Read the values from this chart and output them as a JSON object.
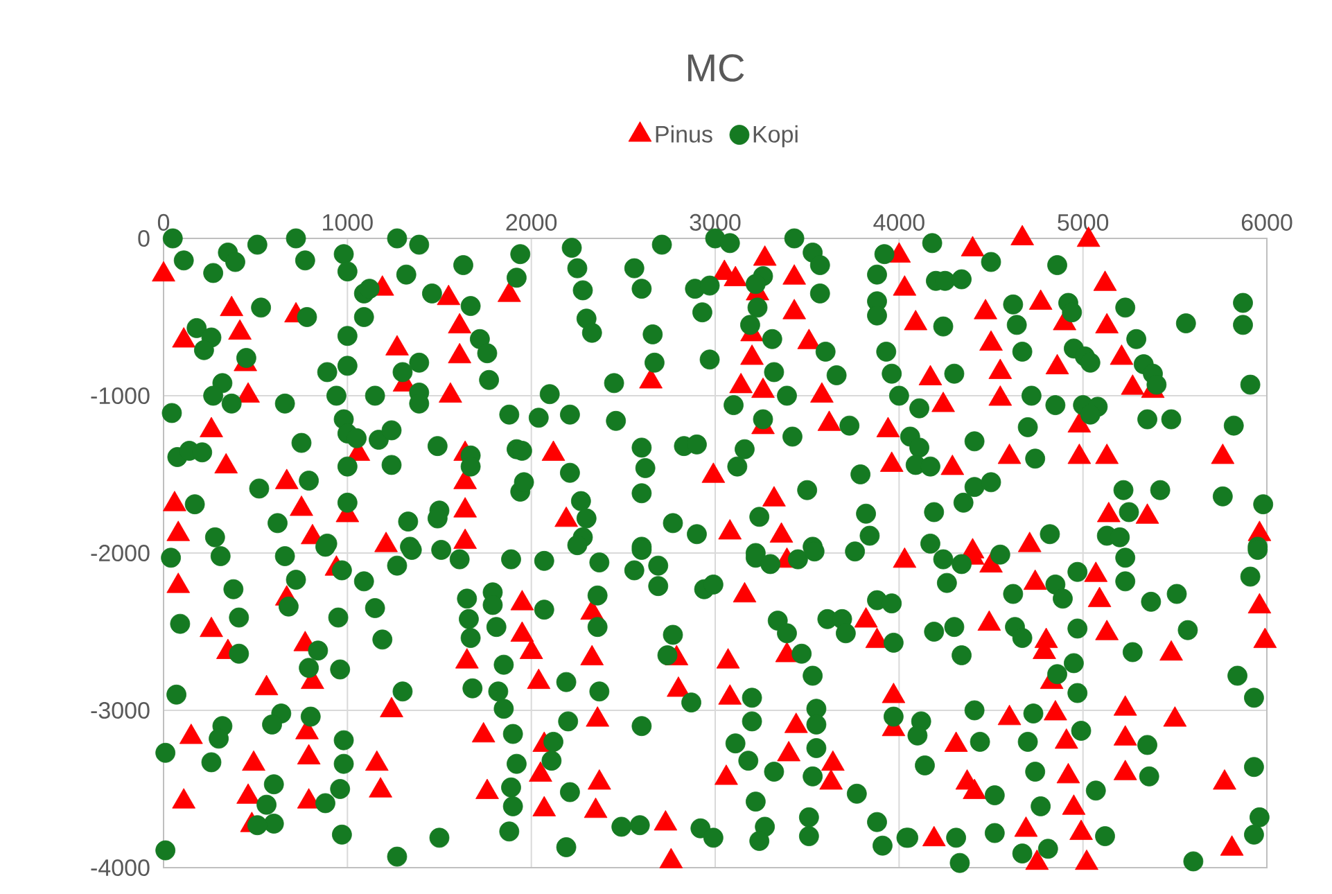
{
  "chart_data": {
    "type": "scatter",
    "title": "MC",
    "xlim": [
      0,
      6000
    ],
    "ylim": [
      -4000,
      0
    ],
    "xticks": [
      0,
      1000,
      2000,
      3000,
      4000,
      5000,
      6000
    ],
    "yticks": [
      0,
      -1000,
      -2000,
      -3000,
      -4000
    ],
    "grid": true,
    "legend": "top",
    "series": [
      {
        "name": "Pinus",
        "color": "#ff0000",
        "marker": "triangle",
        "x": [
          0,
          370,
          110,
          415,
          445,
          720,
          460,
          260,
          340,
          670,
          750,
          60,
          80,
          810,
          1000,
          1190,
          1270,
          1310,
          1060,
          1550,
          1610,
          1610,
          1560,
          1880,
          1640,
          1640,
          1640,
          1210,
          1640,
          2120,
          2190,
          2650,
          3050,
          3110,
          3270,
          3230,
          3430,
          3430,
          3200,
          3510,
          3200,
          3140,
          3260,
          3260,
          3580,
          3620,
          2990,
          3320,
          3080,
          3360,
          4000,
          4030,
          3940,
          3960,
          4400,
          4670,
          5030,
          5120,
          4770,
          4470,
          4900,
          4090,
          5130,
          4500,
          5210,
          4550,
          4860,
          4170,
          5270,
          5380,
          4550,
          4240,
          4980,
          4600,
          4980,
          5130,
          4290,
          5760,
          5140,
          5350,
          5960,
          4400,
          4710,
          80,
          260,
          350,
          560,
          770,
          810,
          150,
          490,
          460,
          480,
          780,
          790,
          790,
          670,
          1240,
          1160,
          1180,
          1650,
          1740,
          1760,
          1950,
          1950,
          110,
          940,
          2330,
          2000,
          2330,
          2040,
          2790,
          2800,
          2360,
          2070,
          2050,
          2070,
          2370,
          2350,
          2730,
          2760,
          3160,
          3070,
          3080,
          3060,
          3390,
          3390,
          3440,
          3400,
          3640,
          3630,
          3820,
          3880,
          4030,
          3970,
          3970,
          4400,
          4500,
          4740,
          5070,
          5090,
          4490,
          4800,
          4790,
          5130,
          5480,
          4830,
          5960,
          5990,
          4600,
          4850,
          5230,
          5500,
          4310,
          4910,
          5230,
          4370,
          4410,
          4920,
          5230,
          5770,
          4950,
          4690,
          4990,
          4190,
          4750,
          5020,
          5810
        ],
        "values": [
          -230,
          -450,
          -650,
          -600,
          -800,
          -490,
          -1000,
          -1220,
          -1450,
          -1550,
          -1720,
          -1690,
          -1880,
          -1900,
          -1760,
          -320,
          -700,
          -930,
          -1370,
          -380,
          -560,
          -750,
          -1000,
          -360,
          -1370,
          -1550,
          -1730,
          -1950,
          -1930,
          -1370,
          -1790,
          -910,
          -220,
          -260,
          -130,
          -350,
          -250,
          -470,
          -610,
          -660,
          -760,
          -940,
          -970,
          -1200,
          -1000,
          -1180,
          -1510,
          -1660,
          -1870,
          -1890,
          -110,
          -320,
          -1220,
          -1440,
          -70,
          0,
          -10,
          -290,
          -410,
          -470,
          -540,
          -540,
          -560,
          -670,
          -760,
          -850,
          -820,
          -890,
          -950,
          -970,
          -1020,
          -1060,
          -1190,
          -1390,
          -1390,
          -1390,
          -1460,
          -1390,
          -1760,
          -1770,
          -1880,
          -1990,
          -1950,
          -2210,
          -2490,
          -2630,
          -2860,
          -2580,
          -2820,
          -3170,
          -3340,
          -3550,
          -3730,
          -3140,
          -3300,
          -3580,
          -2290,
          -3000,
          -3340,
          -3510,
          -2690,
          -3160,
          -3520,
          -2320,
          -2520,
          -3580,
          -2100,
          -2380,
          -2630,
          -2670,
          -2820,
          -2670,
          -2870,
          -3060,
          -3220,
          -3410,
          -3630,
          -3460,
          -3640,
          -3720,
          -3960,
          -2270,
          -2690,
          -2920,
          -3430,
          -2050,
          -2650,
          -3100,
          -3280,
          -3340,
          -3460,
          -2430,
          -2560,
          -2050,
          -2910,
          -3120,
          -2030,
          -2080,
          -2190,
          -2140,
          -2300,
          -2450,
          -2560,
          -2630,
          -2510,
          -2640,
          -2820,
          -2340,
          -2560,
          -3050,
          -3020,
          -2990,
          -3060,
          -3220,
          -3200,
          -3180,
          -3460,
          -3520,
          -3420,
          -3400,
          -3460,
          -3620,
          -3760,
          -3780,
          -3820,
          -3970,
          -3970,
          -3880
        ]
      },
      {
        "name": "Kopi",
        "color": "#157a22",
        "marker": "circle",
        "x": [
          50,
          110,
          270,
          350,
          390,
          510,
          720,
          770,
          980,
          1000,
          1270,
          1390,
          1630,
          1090,
          1120,
          1320,
          1460,
          1670,
          530,
          780,
          180,
          260,
          220,
          450,
          1090,
          1000,
          1000,
          890,
          1390,
          1300,
          1720,
          1760,
          1770,
          320,
          270,
          370,
          660,
          940,
          1150,
          1390,
          1390,
          45,
          980,
          1000,
          1050,
          1170,
          1240,
          750,
          75,
          140,
          210,
          1490,
          1670,
          1670,
          1000,
          1240,
          520,
          790,
          170,
          1000,
          620,
          280,
          890,
          1340,
          1500,
          1490,
          1330,
          1880,
          1920,
          1940,
          1920,
          1940,
          2220,
          2250,
          2280,
          2300,
          2330,
          2560,
          2600,
          2710,
          2660,
          2670,
          2450,
          3000,
          3080,
          2890,
          2970,
          2930,
          2970,
          3430,
          3530,
          3570,
          3570,
          3260,
          3220,
          3230,
          3190,
          3310,
          3600,
          3320,
          3660,
          3390,
          3100,
          3260,
          3420,
          3730,
          3920,
          3880,
          3880,
          3880,
          3930,
          3960,
          4000,
          2100,
          2040,
          2210,
          2460,
          2600,
          2620,
          2830,
          2900,
          3160,
          3120,
          2210,
          1950,
          1960,
          2270,
          2300,
          2280,
          2250,
          2600,
          2600,
          2770,
          2900,
          3240,
          3500,
          3790,
          3820,
          3840,
          3530,
          3220,
          4180,
          4500,
          4200,
          4250,
          4340,
          4860,
          4620,
          4640,
          4920,
          4940,
          4240,
          4670,
          4950,
          5010,
          5040,
          5230,
          5290,
          5330,
          5380,
          5400,
          5560,
          5870,
          5870,
          4300,
          4720,
          4850,
          5000,
          5080,
          5040,
          4110,
          4700,
          5350,
          5480,
          5820,
          4410,
          4060,
          4110,
          4090,
          4170,
          4740,
          4410,
          4500,
          4350,
          4190,
          5220,
          5420,
          5760,
          5980,
          5250,
          5130,
          5200,
          4820,
          4170,
          5910,
          5950,
          40,
          310,
          660,
          880,
          380,
          410,
          90,
          410,
          720,
          680,
          970,
          950,
          790,
          840,
          960,
          70,
          1090,
          1150,
          1190,
          1270,
          1350,
          1510,
          1610,
          1890,
          1650,
          1660,
          1670,
          1790,
          1790,
          1810,
          1850,
          1680,
          1820,
          1850,
          1300,
          640,
          590,
          800,
          320,
          300,
          10,
          260,
          980,
          980,
          960,
          880,
          600,
          560,
          600,
          510,
          970,
          10,
          1270,
          1500,
          1900,
          1920,
          1890,
          1900,
          1880,
          2070,
          2370,
          2600,
          2560,
          2690,
          2690,
          2360,
          2070,
          2360,
          2190,
          2370,
          2200,
          2600,
          2770,
          2740,
          2870,
          2120,
          2110,
          2210,
          2490,
          2590,
          2190,
          2920,
          2990,
          2940,
          2990,
          3220,
          3300,
          3450,
          3540,
          3760,
          3340,
          3390,
          3470,
          3530,
          3610,
          3690,
          3710,
          3880,
          3960,
          3970,
          3200,
          3200,
          3550,
          3550,
          3550,
          3110,
          3180,
          3320,
          3530,
          3220,
          3270,
          3240,
          3510,
          3510,
          3770,
          3880,
          3910,
          3970,
          4040,
          4240,
          4340,
          4550,
          4260,
          4620,
          4850,
          4890,
          4970,
          5230,
          5230,
          5370,
          5510,
          5950,
          5910,
          4190,
          4300,
          4340,
          4630,
          4670,
          4970,
          5270,
          5570,
          4860,
          4950,
          4970,
          5840,
          5930,
          4410,
          4730,
          4990,
          4700,
          4440,
          4120,
          4100,
          4140,
          4740,
          5070,
          5350,
          5360,
          4520,
          4770,
          4050,
          4310,
          4330,
          4520,
          4670,
          4810,
          5120,
          5600,
          5930,
          5960,
          5930
        ],
        "values": [
          0,
          -140,
          -220,
          -90,
          -150,
          -40,
          0,
          -140,
          -100,
          -210,
          0,
          -40,
          -170,
          -350,
          -320,
          -230,
          -350,
          -430,
          -440,
          -500,
          -570,
          -630,
          -710,
          -760,
          -500,
          -620,
          -810,
          -850,
          -790,
          -850,
          -640,
          -730,
          -900,
          -920,
          -1000,
          -1050,
          -1050,
          -1000,
          -1000,
          -980,
          -1050,
          -1110,
          -1150,
          -1240,
          -1270,
          -1280,
          -1220,
          -1300,
          -1390,
          -1350,
          -1360,
          -1320,
          -1380,
          -1450,
          -1450,
          -1440,
          -1590,
          -1540,
          -1690,
          -1680,
          -1810,
          -1900,
          -1940,
          -1960,
          -1730,
          -1780,
          -1800,
          -1120,
          -1340,
          -1610,
          -250,
          -100,
          -60,
          -190,
          -330,
          -510,
          -600,
          -190,
          -320,
          -40,
          -610,
          -790,
          -920,
          0,
          -30,
          -320,
          -300,
          -470,
          -770,
          0,
          -90,
          -170,
          -350,
          -240,
          -290,
          -440,
          -550,
          -640,
          -720,
          -850,
          -870,
          -1000,
          -1060,
          -1150,
          -1260,
          -1190,
          -100,
          -230,
          -400,
          -490,
          -720,
          -860,
          -1000,
          -990,
          -1140,
          -1120,
          -1160,
          -1330,
          -1460,
          -1320,
          -1310,
          -1340,
          -1450,
          -1490,
          -1350,
          -1550,
          -1670,
          -1780,
          -1900,
          -1950,
          -1620,
          -1960,
          -1810,
          -1880,
          -1770,
          -1600,
          -1500,
          -1750,
          -1890,
          -1960,
          -2000,
          -30,
          -150,
          -270,
          -270,
          -260,
          -170,
          -420,
          -550,
          -410,
          -470,
          -560,
          -720,
          -700,
          -750,
          -790,
          -440,
          -640,
          -800,
          -860,
          -930,
          -540,
          -410,
          -550,
          -860,
          -1000,
          -1060,
          -1060,
          -1070,
          -1120,
          -1080,
          -1200,
          -1150,
          -1150,
          -1190,
          -1290,
          -1260,
          -1330,
          -1440,
          -1450,
          -1400,
          -1580,
          -1550,
          -1680,
          -1740,
          -1600,
          -1600,
          -1640,
          -1690,
          -1740,
          -1890,
          -1900,
          -1880,
          -1940,
          -930,
          -1960,
          -2030,
          -2020,
          -2020,
          -1960,
          -2230,
          -2410,
          -2450,
          -2640,
          -2170,
          -2340,
          -2110,
          -2410,
          -2730,
          -2620,
          -2740,
          -2900,
          -2180,
          -2350,
          -2550,
          -2080,
          -1980,
          -1980,
          -2040,
          -2040,
          -2290,
          -2420,
          -2540,
          -2250,
          -2330,
          -2470,
          -2710,
          -2860,
          -2880,
          -2990,
          -2880,
          -3020,
          -3090,
          -3040,
          -3100,
          -3180,
          -3270,
          -3330,
          -3190,
          -3340,
          -3500,
          -3590,
          -3470,
          -3600,
          -3720,
          -3730,
          -3790,
          -3890,
          -3930,
          -3810,
          -3150,
          -3340,
          -3490,
          -3610,
          -3770,
          -2050,
          -2060,
          -1980,
          -2110,
          -2080,
          -2210,
          -2270,
          -2360,
          -2470,
          -2820,
          -2880,
          -3070,
          -3100,
          -2520,
          -2650,
          -2950,
          -3200,
          -3320,
          -3520,
          -3740,
          -3730,
          -3870,
          -3750,
          -3810,
          -2230,
          -2200,
          -2030,
          -2070,
          -2040,
          -1990,
          -1990,
          -2430,
          -2510,
          -2640,
          -2780,
          -2420,
          -2420,
          -2510,
          -2300,
          -2320,
          -2570,
          -2920,
          -3070,
          -2990,
          -3090,
          -3240,
          -3210,
          -3320,
          -3390,
          -3420,
          -3580,
          -3740,
          -3830,
          -3680,
          -3800,
          -3530,
          -3710,
          -3860,
          -3040,
          -3810,
          -2040,
          -2070,
          -2010,
          -2190,
          -2260,
          -2200,
          -2290,
          -2120,
          -2030,
          -2180,
          -2310,
          -2260,
          -1980,
          -2150,
          -2500,
          -2470,
          -2650,
          -2470,
          -2540,
          -2480,
          -2630,
          -2490,
          -2770,
          -2700,
          -2890,
          -2780,
          -2920,
          -3000,
          -3020,
          -3130,
          -3200,
          -3200,
          -3070,
          -3160,
          -3350,
          -3390,
          -3510,
          -3220,
          -3420,
          -3540,
          -3610,
          -3810,
          -3810,
          -3970,
          -3780,
          -3910,
          -3880,
          -3800,
          -3960,
          -3360,
          -3680,
          -3790
        ]
      }
    ]
  }
}
